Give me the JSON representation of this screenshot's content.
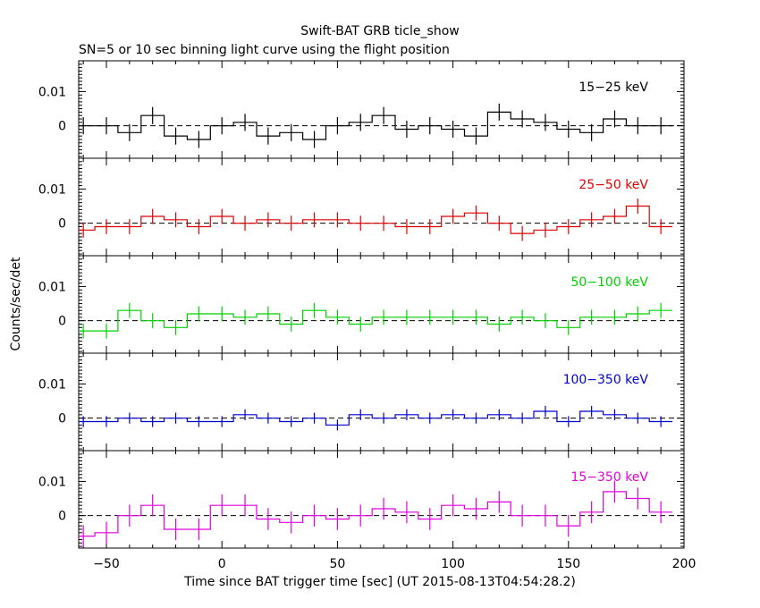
{
  "title": "Swift-BAT GRB ticle_show",
  "subtitle": "SN=5 or 10 sec binning light curve using the flight position",
  "ylabel": "Counts/sec/det",
  "xlabel": "Time since BAT trigger time [sec] (UT 2015-08-13T04:54:28.2)",
  "chart_data": {
    "type": "line",
    "style": "step-with-errorbars",
    "xlim": [
      -62,
      200
    ],
    "ylim": [
      -0.0095,
      0.019
    ],
    "x_ticks": [
      -50,
      0,
      50,
      100,
      150,
      200
    ],
    "x_tick_labels": [
      "−50",
      "0",
      "50",
      "100",
      "150",
      "200"
    ],
    "y_ticks": [
      0,
      0.01
    ],
    "y_tick_labels": [
      "0",
      "0.01"
    ],
    "bin_width": 10,
    "x": [
      -60,
      -50,
      -40,
      -30,
      -20,
      -10,
      0,
      10,
      20,
      30,
      40,
      50,
      60,
      70,
      80,
      90,
      100,
      110,
      120,
      130,
      140,
      150,
      160,
      170,
      180,
      190
    ],
    "panels": [
      {
        "name": "15-25 keV",
        "label": "15−25 keV",
        "color": "#000000",
        "values": [
          0.0,
          0.0,
          -0.002,
          0.003,
          -0.003,
          -0.004,
          0.0,
          0.001,
          -0.003,
          -0.002,
          -0.004,
          0.0,
          0.001,
          0.003,
          -0.001,
          0.0,
          -0.001,
          -0.003,
          0.004,
          0.002,
          0.001,
          -0.001,
          -0.002,
          0.002,
          0.0,
          0.0
        ],
        "errors": [
          0.0025,
          0.0025,
          0.0025,
          0.0025,
          0.0025,
          0.0025,
          0.0025,
          0.0025,
          0.0025,
          0.0025,
          0.0025,
          0.0025,
          0.0025,
          0.0025,
          0.0025,
          0.0025,
          0.0025,
          0.0025,
          0.0025,
          0.0025,
          0.0025,
          0.0025,
          0.0025,
          0.0025,
          0.0025,
          0.0025
        ]
      },
      {
        "name": "25-50 keV",
        "label": "25−50 keV",
        "color": "#e00000",
        "values": [
          -0.002,
          -0.001,
          -0.001,
          0.002,
          0.001,
          -0.001,
          0.002,
          0.0,
          0.001,
          0.0,
          0.001,
          0.001,
          0.0,
          0.0,
          -0.001,
          -0.001,
          0.002,
          0.003,
          0.0,
          -0.003,
          -0.002,
          -0.001,
          0.001,
          0.002,
          0.005,
          -0.001
        ],
        "errors": [
          0.0022,
          0.0022,
          0.0022,
          0.0022,
          0.0022,
          0.0022,
          0.0022,
          0.0022,
          0.0022,
          0.0022,
          0.0022,
          0.0022,
          0.0022,
          0.0022,
          0.0022,
          0.0022,
          0.0022,
          0.0022,
          0.0022,
          0.0022,
          0.0022,
          0.0022,
          0.0022,
          0.0022,
          0.0022,
          0.0022
        ]
      },
      {
        "name": "50-100 keV",
        "label": "50−100 keV",
        "color": "#00d000",
        "values": [
          -0.003,
          -0.003,
          0.003,
          0.0,
          -0.002,
          0.002,
          0.002,
          0.001,
          0.002,
          -0.001,
          0.003,
          0.001,
          -0.001,
          0.001,
          0.001,
          0.001,
          0.001,
          0.001,
          -0.001,
          0.001,
          0.0,
          -0.002,
          0.001,
          0.001,
          0.002,
          0.003
        ],
        "errors": [
          0.0022,
          0.0022,
          0.0022,
          0.0022,
          0.0022,
          0.0022,
          0.0022,
          0.0022,
          0.0022,
          0.0022,
          0.0022,
          0.0022,
          0.0022,
          0.0022,
          0.0022,
          0.0022,
          0.0022,
          0.0022,
          0.0022,
          0.0022,
          0.0022,
          0.0022,
          0.0022,
          0.0022,
          0.0022,
          0.0022
        ]
      },
      {
        "name": "100-350 keV",
        "label": "100−350 keV",
        "color": "#0000d0",
        "values": [
          -0.001,
          -0.001,
          0.0,
          -0.001,
          0.0,
          -0.001,
          -0.001,
          0.001,
          0.0,
          -0.001,
          0.0,
          -0.002,
          0.001,
          0.0,
          0.001,
          0.0,
          0.001,
          0.0,
          0.001,
          0.0,
          0.002,
          -0.001,
          0.002,
          0.001,
          0.0,
          -0.001
        ],
        "errors": [
          0.0016,
          0.0016,
          0.0016,
          0.0016,
          0.0016,
          0.0016,
          0.0016,
          0.0016,
          0.0016,
          0.0016,
          0.0016,
          0.0016,
          0.0016,
          0.0016,
          0.0016,
          0.0016,
          0.0016,
          0.0016,
          0.0016,
          0.0016,
          0.0016,
          0.0016,
          0.0016,
          0.0016,
          0.0016,
          0.0016
        ]
      },
      {
        "name": "15-350 keV",
        "label": "15−350 keV",
        "color": "#e000e0",
        "values": [
          -0.006,
          -0.005,
          0.0,
          0.003,
          -0.004,
          -0.004,
          0.003,
          0.003,
          -0.001,
          -0.002,
          0.0,
          -0.001,
          0.0,
          0.002,
          0.001,
          -0.001,
          0.003,
          0.002,
          0.004,
          0.0,
          0.0,
          -0.003,
          0.001,
          0.007,
          0.005,
          0.001
        ],
        "errors": [
          0.0032,
          0.0032,
          0.0032,
          0.0032,
          0.0032,
          0.0032,
          0.0032,
          0.0032,
          0.0032,
          0.0032,
          0.0032,
          0.0032,
          0.0032,
          0.0032,
          0.0032,
          0.0032,
          0.0032,
          0.0032,
          0.0032,
          0.0032,
          0.0032,
          0.0032,
          0.0032,
          0.0032,
          0.0032,
          0.0032
        ]
      }
    ]
  }
}
